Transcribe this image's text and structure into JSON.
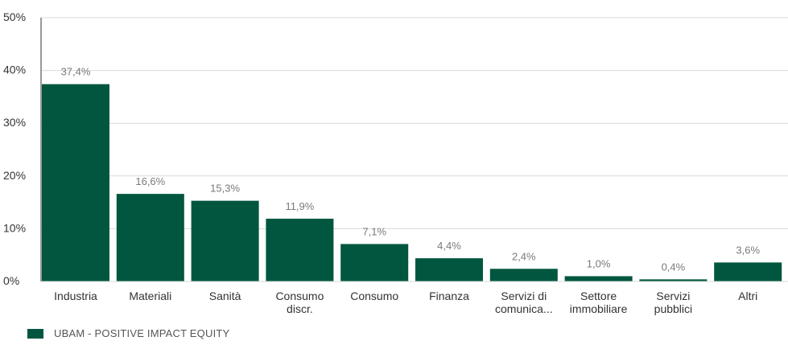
{
  "colors": {
    "bar": "#00563f",
    "grid": "#d9d9d9",
    "axis": "#333333",
    "tick_text": "#333333",
    "value_label": "#7a7a7a"
  },
  "chart_data": {
    "type": "bar",
    "categories": [
      [
        "Industria"
      ],
      [
        "Materiali"
      ],
      [
        "Sanità"
      ],
      [
        "Consumo",
        "discr."
      ],
      [
        "Consumo"
      ],
      [
        "Finanza"
      ],
      [
        "Servizi di",
        "comunica..."
      ],
      [
        "Settore",
        "immobiliare"
      ],
      [
        "Servizi",
        "pubblici"
      ],
      [
        "Altri"
      ]
    ],
    "series": [
      {
        "name": "UBAM - POSITIVE IMPACT EQUITY",
        "values": [
          37.4,
          16.6,
          15.3,
          11.9,
          7.1,
          4.4,
          2.4,
          1.0,
          0.4,
          3.6
        ],
        "labels": [
          "37,4%",
          "16,6%",
          "15,3%",
          "11,9%",
          "7,1%",
          "4,4%",
          "2,4%",
          "1,0%",
          "0,4%",
          "3,6%"
        ]
      }
    ],
    "ylim": [
      0,
      50
    ],
    "yticks": [
      0,
      10,
      20,
      30,
      40,
      50
    ],
    "ytick_labels": [
      "0%",
      "10%",
      "20%",
      "30%",
      "40%",
      "50%"
    ],
    "grid": true,
    "legend_position": "bottom-left"
  }
}
